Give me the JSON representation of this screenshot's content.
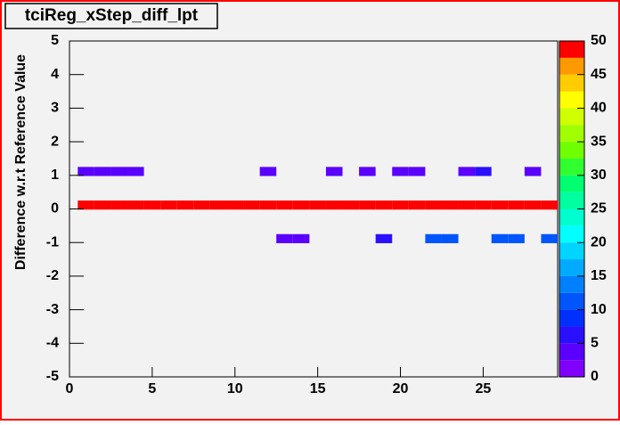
{
  "chart_data": {
    "type": "heatmap",
    "title": "tciReg_xStep_diff_lpt",
    "y_label": "Difference w.r.t Reference Value",
    "xlim": [
      0,
      29.5
    ],
    "xticks": [
      0,
      5,
      10,
      15,
      20,
      25
    ],
    "ylim": [
      -5,
      5
    ],
    "yticks": [
      -5,
      -4,
      -3,
      -2,
      -1,
      0,
      1,
      2,
      3,
      4,
      5
    ],
    "zlim": [
      0,
      50
    ],
    "zticks": [
      0,
      5,
      10,
      15,
      20,
      25,
      30,
      35,
      40,
      45,
      50
    ],
    "palette": [
      "#8000ff",
      "#5a00ff",
      "#2a10ff",
      "#0030ff",
      "#0055ff",
      "#0080ff",
      "#00aaff",
      "#00d5ff",
      "#00ffff",
      "#00ffd0",
      "#00ffa0",
      "#00ff70",
      "#30ff30",
      "#70ff00",
      "#a0ff00",
      "#d0ff00",
      "#ffff00",
      "#ffcc00",
      "#ff9900",
      "#ff5500",
      "#ff0000"
    ],
    "rows": [
      {
        "y": 1,
        "x": [
          1,
          2,
          3,
          4,
          12,
          16,
          18,
          20,
          21,
          24,
          25,
          28
        ],
        "z": [
          3,
          3,
          3,
          3,
          3,
          3,
          3,
          3,
          3,
          3,
          6,
          3
        ]
      },
      {
        "y": 0,
        "x": [
          1,
          2,
          3,
          4,
          5,
          6,
          7,
          8,
          9,
          10,
          11,
          12,
          13,
          14,
          15,
          16,
          17,
          18,
          19,
          20,
          21,
          22,
          23,
          24,
          25,
          26,
          27,
          28,
          29
        ],
        "z": [
          50,
          50,
          50,
          50,
          50,
          50,
          50,
          50,
          50,
          50,
          50,
          50,
          50,
          50,
          50,
          50,
          50,
          50,
          50,
          50,
          50,
          50,
          50,
          50,
          50,
          50,
          50,
          50,
          50
        ]
      },
      {
        "y": -1,
        "x": [
          13,
          14,
          19,
          22,
          23,
          26,
          27,
          29
        ],
        "z": [
          3,
          3,
          7,
          11,
          11,
          11,
          11,
          11
        ]
      }
    ]
  }
}
